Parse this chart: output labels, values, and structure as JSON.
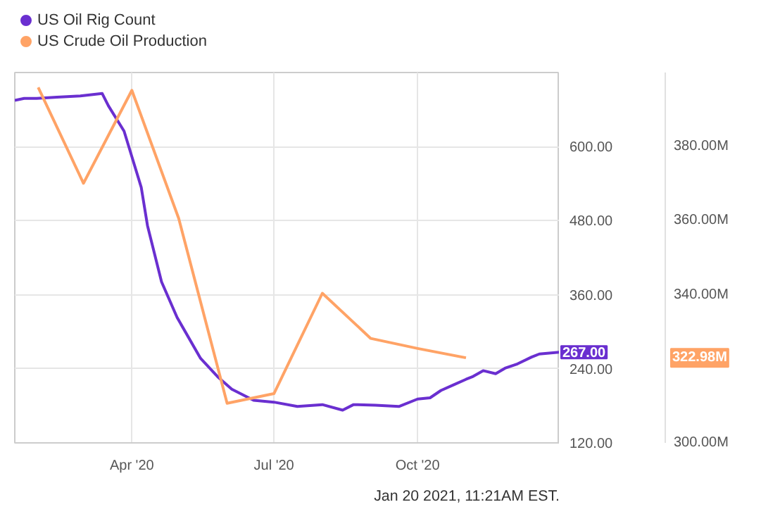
{
  "chart_data": {
    "type": "line",
    "xlim": [
      "2020-01-17",
      "2020-12-31"
    ],
    "xticks": [
      {
        "value": "2020-04-01",
        "label": "Apr '20"
      },
      {
        "value": "2020-07-01",
        "label": "Jul '20"
      },
      {
        "value": "2020-10-01",
        "label": "Oct '20"
      }
    ],
    "ylim": [
      120,
      720
    ],
    "yticks": [
      {
        "value": 120,
        "label": "120.00"
      },
      {
        "value": 240,
        "label": "240.00"
      },
      {
        "value": 360,
        "label": "360.00"
      },
      {
        "value": 480,
        "label": "480.00"
      },
      {
        "value": 600,
        "label": "600.00"
      }
    ],
    "y2lim": [
      300,
      400
    ],
    "y2ticks": [
      {
        "value": 300,
        "label": "300.00M"
      },
      {
        "value": 340,
        "label": "340.00M"
      },
      {
        "value": 360,
        "label": "360.00M"
      },
      {
        "value": 380,
        "label": "380.00M"
      }
    ],
    "grid": true,
    "legend": "top left",
    "line_style": "solid",
    "annotations": [
      "Jan 20 2021, 11:21AM EST.",
      "322.98M"
    ],
    "series": [
      {
        "name": "US Oil Rig Count",
        "color": "#6a2fd0",
        "x": [
          "2020-01-17",
          "2020-01-23",
          "2020-01-31",
          "2020-02-13",
          "2020-02-28",
          "2020-03-06",
          "2020-03-13",
          "2020-03-17",
          "2020-03-27",
          "2020-04-07",
          "2020-04-11",
          "2020-04-20",
          "2020-04-30",
          "2020-05-15",
          "2020-05-26",
          "2020-06-04",
          "2020-06-18",
          "2020-07-01",
          "2020-07-16",
          "2020-08-01",
          "2020-08-14",
          "2020-08-21",
          "2020-09-04",
          "2020-09-19",
          "2020-10-01",
          "2020-10-09",
          "2020-10-16",
          "2020-10-24",
          "2020-11-01",
          "2020-11-05",
          "2020-11-12",
          "2020-11-20",
          "2020-11-26",
          "2020-12-04",
          "2020-12-13",
          "2020-12-18",
          "2020-12-31"
        ],
        "values": [
          675,
          678,
          678,
          680,
          682,
          684,
          686,
          666,
          625,
          534,
          472,
          381,
          323,
          257,
          227,
          207,
          189,
          186,
          179,
          182,
          173,
          182,
          181,
          179,
          191,
          193,
          205,
          214,
          223,
          227,
          237,
          232,
          241,
          248,
          259,
          264,
          267
        ],
        "value_labels": [
          null,
          null,
          null,
          null,
          null,
          null,
          null,
          null,
          null,
          null,
          null,
          null,
          null,
          null,
          null,
          null,
          null,
          null,
          null,
          null,
          null,
          null,
          null,
          null,
          null,
          null,
          null,
          null,
          null,
          null,
          null,
          null,
          null,
          null,
          null,
          null,
          "267.00"
        ]
      },
      {
        "name": "US Crude Oil Production",
        "color": "#ffa366",
        "axis": "y2",
        "x": [
          "2020-02-01",
          "2020-03-01",
          "2020-04-01",
          "2020-05-01",
          "2020-06-01",
          "2020-07-01",
          "2020-08-01",
          "2020-09-01",
          "2020-10-01",
          "2020-11-01"
        ],
        "values": [
          396.0,
          370.1,
          395.2,
          360.6,
          310.7,
          313.3,
          340.4,
          328.2,
          325.5,
          322.98
        ]
      }
    ]
  }
}
